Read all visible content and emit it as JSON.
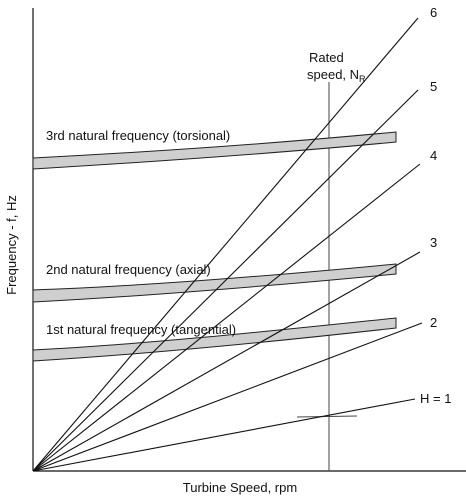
{
  "axes": {
    "ylabel": "Frequency - f, Hz",
    "xlabel": "Turbine Speed, rpm"
  },
  "rated_speed": {
    "line1": "Rated",
    "line2": "speed, N",
    "subscript": "R"
  },
  "bands": [
    {
      "label": "3rd natural frequency (torsional)"
    },
    {
      "label": "2nd natural frequency (axial)"
    },
    {
      "label": "1st natural frequency (tangential)"
    }
  ],
  "harmonic_lines": [
    {
      "label": "H = 1"
    },
    {
      "label": "2"
    },
    {
      "label": "3"
    },
    {
      "label": "4"
    },
    {
      "label": "5"
    },
    {
      "label": "6"
    }
  ],
  "colors": {
    "band_fill": "#cfcfcf",
    "line": "#111111"
  }
}
